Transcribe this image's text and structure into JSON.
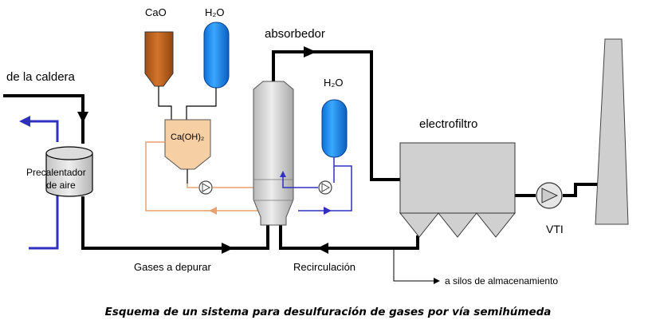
{
  "labels": {
    "cao": "CaO",
    "h2o_top": "H₂O",
    "absorbedor": "absorbedor",
    "de_la_caldera": "de la caldera",
    "h2o_right": "H₂O",
    "electrofiltro": "electrofiltro",
    "caoh2": "Ca(OH)₂",
    "precalentador": "Precalentador",
    "de_aire": "de aire",
    "vti": "VTI",
    "gases_a_depurar": "Gases a depurar",
    "recirculacion": "Recirculación",
    "a_silos": "a silos de almacenamiento"
  },
  "caption": "Esquema de un sistema para desulfuración de gases por vía semihúmeda",
  "colors": {
    "cao_tank": "#c0621a",
    "water_tank": "#1e90ff",
    "slaker": "#f6cfa4",
    "orange_line": "#e8a070",
    "blue_line": "#3030c0",
    "gas_line": "#000000",
    "equipment_fill": "#cfcfcf"
  },
  "icons": [
    "pump-icon",
    "flow-arrow-icon"
  ]
}
